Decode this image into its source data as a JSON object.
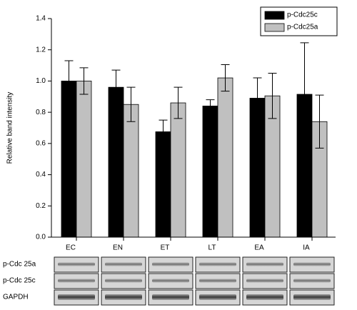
{
  "chart_data": {
    "type": "bar",
    "y_label": "Relative band intensity",
    "categories": [
      "EC",
      "EN",
      "ET",
      "LT",
      "EA",
      "IA"
    ],
    "series": [
      {
        "name": "p-Cdc25c",
        "color": "#000000",
        "values": [
          1.0,
          0.96,
          0.675,
          0.84,
          0.89,
          0.915
        ],
        "errors": [
          0.13,
          0.11,
          0.075,
          0.04,
          0.13,
          0.33
        ]
      },
      {
        "name": "p-Cdc25a",
        "color": "#c0c0c0",
        "values": [
          1.0,
          0.85,
          0.86,
          1.02,
          0.905,
          0.74
        ],
        "errors": [
          0.085,
          0.11,
          0.1,
          0.085,
          0.145,
          0.17
        ]
      }
    ],
    "ylim": [
      0,
      1.4
    ],
    "yticks": [
      {
        "value": 0,
        "label": "0.0"
      },
      0.2,
      0.4,
      0.6,
      0.8,
      {
        "value": 1,
        "label": "1.0"
      },
      1.2,
      1.4
    ],
    "legend": "upper right",
    "blot_labels": [
      "p-Cdc 25a",
      "p-Cdc 25c",
      "GAPDH"
    ]
  }
}
